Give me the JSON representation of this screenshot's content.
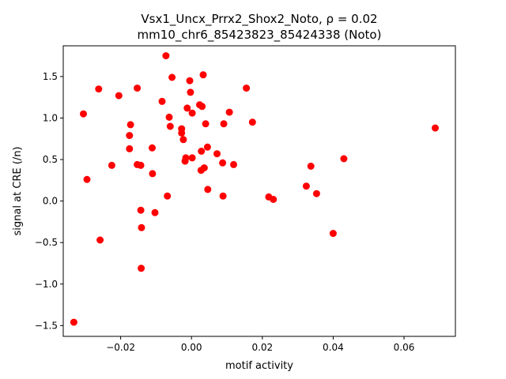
{
  "chart_data": {
    "type": "scatter",
    "title_line1": "Vsx1_Uncx_Prrx2_Shox2_Noto, ρ = 0.02",
    "title_line2": "mm10_chr6_85423823_85424338 (Noto)",
    "xlabel": "motif activity",
    "ylabel": "signal at CRE (/n)",
    "xlim": [
      -0.0362,
      0.0745
    ],
    "ylim": [
      -1.63,
      1.87
    ],
    "x_ticks": [
      -0.02,
      0.0,
      0.02,
      0.04,
      0.06
    ],
    "x_tick_labels": [
      "−0.02",
      "0.00",
      "0.02",
      "0.04",
      "0.06"
    ],
    "y_ticks": [
      -1.5,
      -1.0,
      -0.5,
      0.0,
      0.5,
      1.0,
      1.5
    ],
    "y_tick_labels": [
      "−1.5",
      "−1.0",
      "−0.5",
      "0.0",
      "0.5",
      "1.0",
      "1.5"
    ],
    "grid": false,
    "marker_color": "#ff0000",
    "points": [
      [
        -0.0332,
        -1.46
      ],
      [
        -0.0305,
        1.05
      ],
      [
        -0.0295,
        0.26
      ],
      [
        -0.0262,
        1.35
      ],
      [
        -0.0258,
        -0.47
      ],
      [
        -0.0225,
        0.43
      ],
      [
        -0.0205,
        1.27
      ],
      [
        -0.0175,
        0.79
      ],
      [
        -0.0172,
        0.92
      ],
      [
        -0.0175,
        0.63
      ],
      [
        -0.0153,
        1.36
      ],
      [
        -0.0153,
        0.44
      ],
      [
        -0.0143,
        0.43
      ],
      [
        -0.0143,
        -0.11
      ],
      [
        -0.0141,
        -0.32
      ],
      [
        -0.0142,
        -0.81
      ],
      [
        -0.0111,
        0.64
      ],
      [
        -0.011,
        0.33
      ],
      [
        -0.0103,
        -0.14
      ],
      [
        -0.0083,
        1.2
      ],
      [
        -0.0072,
        1.75
      ],
      [
        -0.0068,
        0.06
      ],
      [
        -0.0063,
        1.01
      ],
      [
        -0.006,
        0.9
      ],
      [
        -0.0055,
        1.49
      ],
      [
        -0.0028,
        0.87
      ],
      [
        -0.0028,
        0.82
      ],
      [
        -0.0023,
        0.74
      ],
      [
        -0.0018,
        0.48
      ],
      [
        -0.0016,
        0.52
      ],
      [
        -0.0012,
        1.12
      ],
      [
        -0.0005,
        1.45
      ],
      [
        -0.0003,
        1.31
      ],
      [
        0.0002,
        1.06
      ],
      [
        0.0002,
        0.52
      ],
      [
        0.0023,
        1.16
      ],
      [
        0.0027,
        0.37
      ],
      [
        0.0028,
        0.6
      ],
      [
        0.003,
        1.14
      ],
      [
        0.0033,
        1.52
      ],
      [
        0.0036,
        0.4
      ],
      [
        0.004,
        0.93
      ],
      [
        0.0045,
        0.65
      ],
      [
        0.0046,
        0.14
      ],
      [
        0.0072,
        0.57
      ],
      [
        0.0088,
        0.46
      ],
      [
        0.0089,
        0.06
      ],
      [
        0.0091,
        0.93
      ],
      [
        0.0107,
        1.07
      ],
      [
        0.0119,
        0.44
      ],
      [
        0.0155,
        1.36
      ],
      [
        0.0172,
        0.95
      ],
      [
        0.0218,
        0.05
      ],
      [
        0.0231,
        0.02
      ],
      [
        0.0324,
        0.18
      ],
      [
        0.0337,
        0.42
      ],
      [
        0.0353,
        0.09
      ],
      [
        0.04,
        -0.39
      ],
      [
        0.043,
        0.51
      ],
      [
        0.0688,
        0.88
      ]
    ]
  }
}
